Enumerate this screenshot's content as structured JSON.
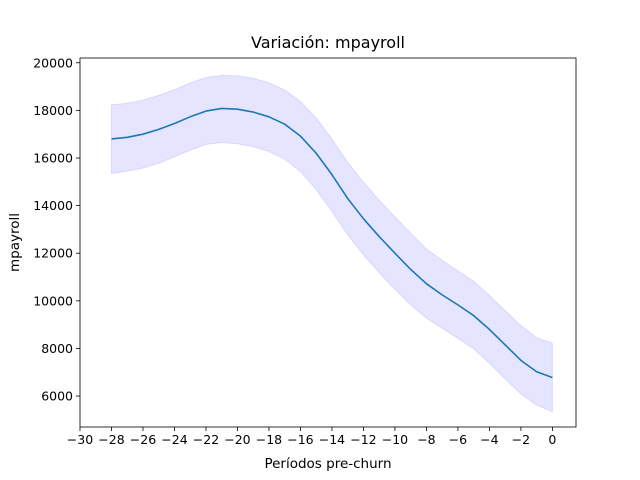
{
  "chart_data": {
    "type": "line",
    "title": "Variación: mpayroll",
    "xlabel": "Períodos pre-churn",
    "ylabel": "mpayroll",
    "xlim": [
      -30,
      1.5
    ],
    "ylim": [
      4700,
      20200
    ],
    "xticks": [
      -30,
      -28,
      -26,
      -24,
      -22,
      -20,
      -18,
      -16,
      -14,
      -12,
      -10,
      -8,
      -6,
      -4,
      -2,
      0
    ],
    "xtick_labels": [
      "−30",
      "−28",
      "−26",
      "−24",
      "−22",
      "−20",
      "−18",
      "−16",
      "−14",
      "−12",
      "−10",
      "−8",
      "−6",
      "−4",
      "−2",
      "0"
    ],
    "yticks": [
      6000,
      8000,
      10000,
      12000,
      14000,
      16000,
      18000,
      20000
    ],
    "ytick_labels": [
      "6000",
      "8000",
      "10000",
      "12000",
      "14000",
      "16000",
      "18000",
      "20000"
    ],
    "grid": false,
    "colors": {
      "line": "#1f77b4",
      "band": "#0000ff",
      "axes": "#000000"
    },
    "series": [
      {
        "x": [
          -28,
          -27,
          -26,
          -25,
          -24,
          -23,
          -22,
          -21,
          -20,
          -19,
          -18,
          -17,
          -16,
          -15,
          -14,
          -13,
          -12,
          -11,
          -10,
          -9,
          -8,
          -7,
          -6,
          -5,
          -4,
          -3,
          -2,
          -1,
          0
        ],
        "values": [
          16800,
          16870,
          17000,
          17200,
          17450,
          17730,
          17970,
          18080,
          18050,
          17930,
          17730,
          17420,
          16920,
          16200,
          15300,
          14300,
          13450,
          12700,
          12000,
          11320,
          10720,
          10250,
          9830,
          9380,
          8800,
          8150,
          7500,
          7020,
          6780
        ],
        "lower": [
          15350,
          15450,
          15580,
          15780,
          16050,
          16330,
          16570,
          16650,
          16600,
          16470,
          16270,
          15950,
          15430,
          14670,
          13750,
          12780,
          11930,
          11190,
          10480,
          9830,
          9280,
          8850,
          8430,
          7980,
          7380,
          6720,
          6090,
          5620,
          5340
        ],
        "upper": [
          18230,
          18300,
          18430,
          18630,
          18870,
          19150,
          19380,
          19470,
          19450,
          19350,
          19160,
          18860,
          18380,
          17680,
          16800,
          15820,
          14980,
          14230,
          13530,
          12840,
          12180,
          11700,
          11260,
          10820,
          10230,
          9590,
          8960,
          8460,
          8220
        ]
      }
    ]
  }
}
